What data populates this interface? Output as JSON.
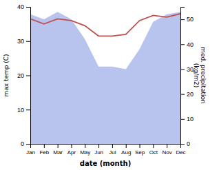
{
  "chart_data": {
    "type": "line",
    "categories": [
      "Jan",
      "Feb",
      "Mar",
      "Apr",
      "May",
      "Jun",
      "Jul",
      "Aug",
      "Sep",
      "Oct",
      "Nov",
      "Dec"
    ],
    "xlabel": "date (month)",
    "ylabel": "max temp (C)",
    "y2label": "med. precipitation\n(kg/m2)",
    "series": [
      {
        "type": "area",
        "axis": "y2",
        "color": "#b8c4ee",
        "values": [
          52,
          50,
          53,
          50,
          42,
          31,
          31,
          30,
          38,
          49,
          52,
          53
        ]
      },
      {
        "type": "line",
        "color": "#c0504d",
        "values": [
          36.5,
          35.0,
          36.5,
          36.0,
          34.5,
          31.5,
          31.5,
          32.0,
          36.0,
          37.5,
          37.0,
          38.0
        ]
      }
    ],
    "ylim": [
      0,
      40
    ],
    "yticks": [
      0,
      10,
      20,
      30,
      40
    ],
    "y2lim": [
      0,
      55
    ],
    "y2ticks": [
      0,
      10,
      20,
      30,
      40,
      50
    ]
  }
}
